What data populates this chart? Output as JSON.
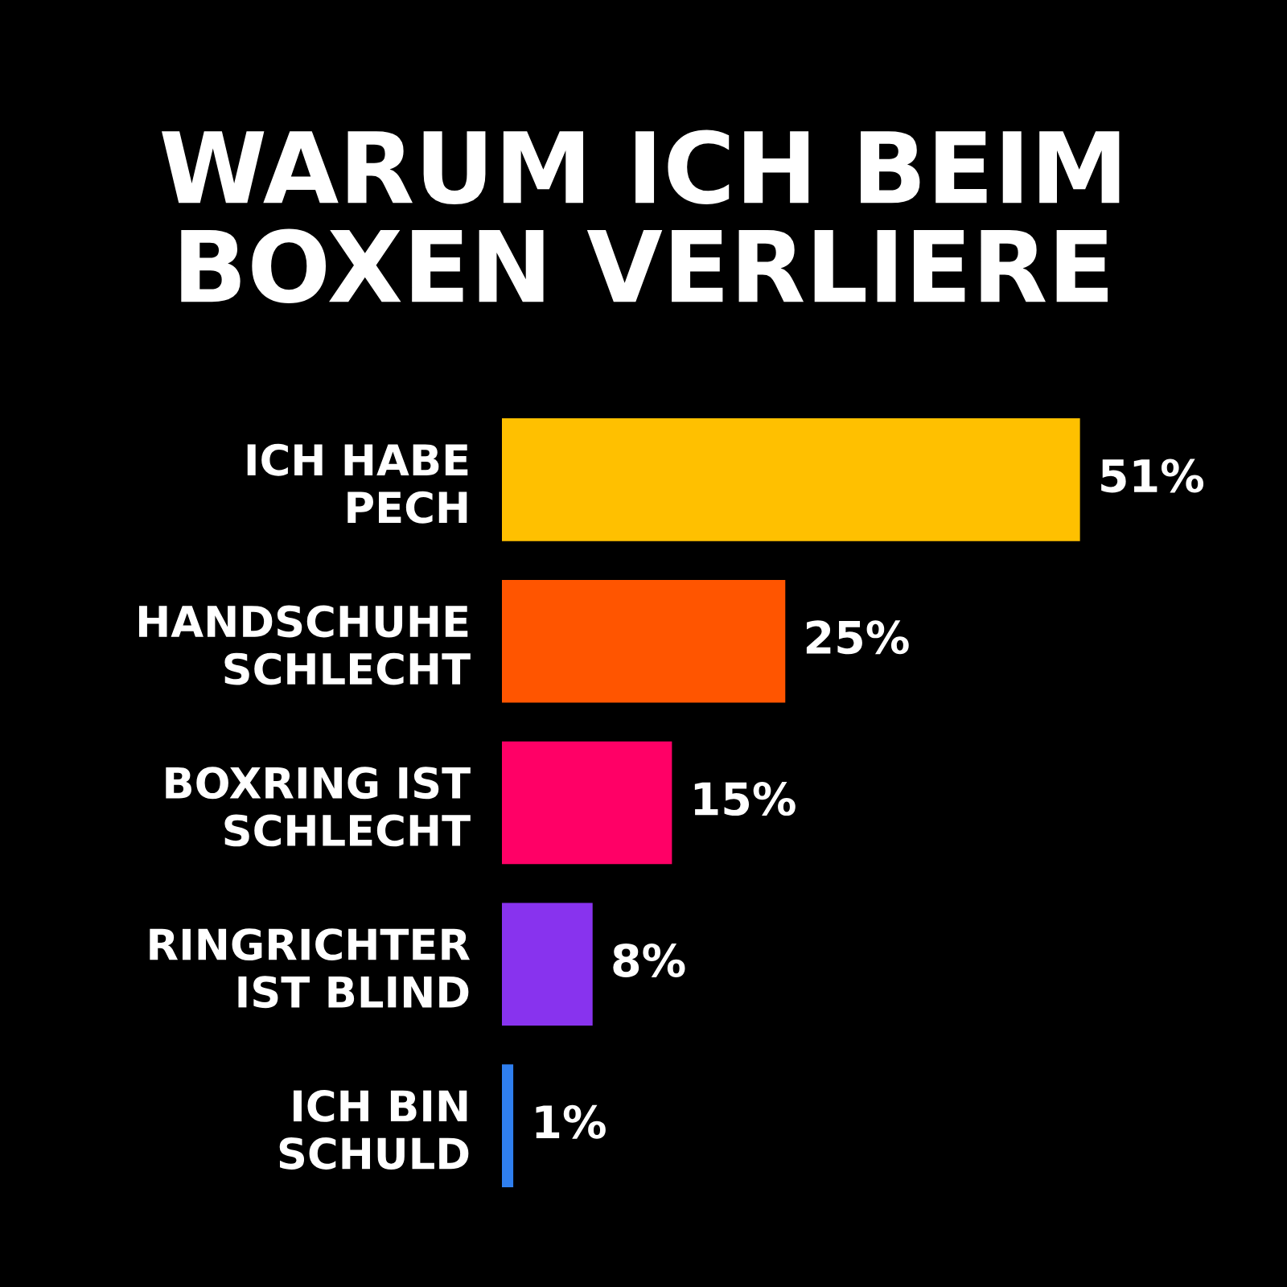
{
  "chart_data": {
    "type": "bar",
    "orientation": "horizontal",
    "title": "WARUM ICH BEIM\nBOXEN VERLIERE",
    "categories": [
      "ICH HABE\nPECH",
      "HANDSCHUHE\nSCHLECHT",
      "BOXRING IST\nSCHLECHT",
      "RINGRICHTER\nIST BLIND",
      "ICH BIN\nSCHULD"
    ],
    "values": [
      51,
      25,
      15,
      8,
      1
    ],
    "colors": [
      "#ffc000",
      "#ff5500",
      "#ff0066",
      "#8833ee",
      "#2f7fef"
    ],
    "value_labels": [
      "51%",
      "25%",
      "15%",
      "8%",
      "1%"
    ],
    "tick_labels": "y",
    "grid": false,
    "legend": false
  }
}
